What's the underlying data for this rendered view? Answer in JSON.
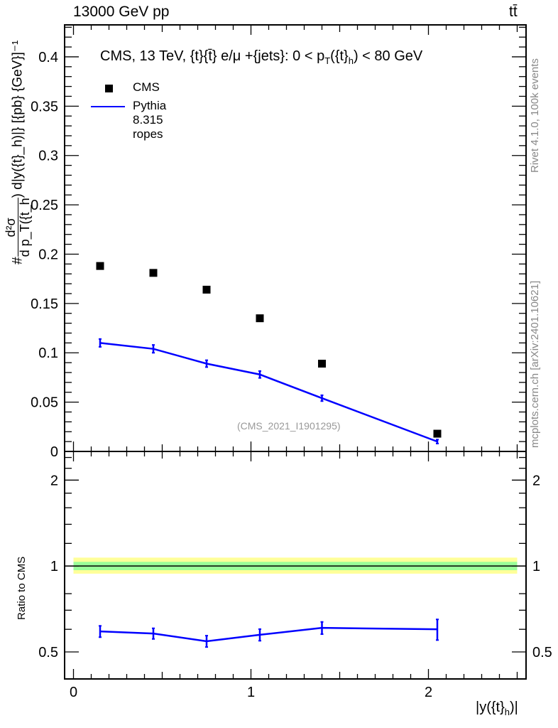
{
  "header": {
    "left": "13000 GeV pp",
    "right": "tt̄"
  },
  "side_labels": {
    "rivet": "Rivet 4.1.0,  100k events",
    "mcplots": "mcplots.cern.ch [arXiv:2401.10621]"
  },
  "colors": {
    "mc": "#0000ff",
    "data": "#000000",
    "band_outer": "#ffff99",
    "band_inner": "#99ff99"
  },
  "chart_data": [
    {
      "type": "scatter",
      "title": "CMS, 13 TeV, {t}{t̄} e/μ +{jets}: 0 <  p_T({t}_h) < 80 GeV",
      "title_parts": {
        "main": "CMS, 13 TeV, {t}{t̄} e/μ +{jets}: 0 <  p",
        "sub1": "T",
        "mid": "({t}",
        "sub2": "h",
        "end": ") < 80 GeV"
      },
      "ylabel": "#frac{d^2σ}{d p_T({t}_h) d|y({t}_h)|} [{pb} {GeV}^-1]",
      "ylabel_parts": {
        "hash": "#",
        "num": "d²σ",
        "den": "d p_T({t_h",
        "rest": ") d|y({t}_h)|} [{pb} {GeV}]⁻¹"
      },
      "watermark": "(CMS_2021_I1901295)",
      "xlim": [
        -0.05,
        2.55
      ],
      "ylim": [
        0,
        0.4324
      ],
      "yticks": [
        0,
        0.05,
        0.1,
        0.15,
        0.2,
        0.25,
        0.3,
        0.35,
        0.4
      ],
      "ytick_labels": [
        "0",
        "0.05",
        "0.1",
        "0.15",
        "0.2",
        "0.25",
        "0.3",
        "0.35",
        "0.4"
      ],
      "legend": {
        "position": "top-left",
        "entries": [
          "CMS",
          "Pythia 8.315 ropes"
        ]
      },
      "series": [
        {
          "name": "CMS",
          "style": "marker",
          "x": [
            0.15,
            0.45,
            0.75,
            1.05,
            1.4,
            2.05
          ],
          "y": [
            0.188,
            0.181,
            0.164,
            0.135,
            0.089,
            0.018
          ]
        },
        {
          "name": "Pythia 8.315 ropes",
          "style": "line",
          "x": [
            0.15,
            0.45,
            0.75,
            1.05,
            1.4,
            2.05
          ],
          "y": [
            0.11,
            0.104,
            0.089,
            0.078,
            0.054,
            0.01
          ],
          "err": [
            0.004,
            0.004,
            0.0035,
            0.0035,
            0.003,
            0.002
          ]
        }
      ]
    },
    {
      "type": "line",
      "ylabel": "Ratio to CMS",
      "xlabel": "|y({t}_h)|",
      "xlabel_parts": {
        "main": "|y({t}",
        "sub": "h",
        "end": ")|"
      },
      "yscale": "log",
      "ylim": [
        0.402,
        2.52
      ],
      "xlim": [
        -0.05,
        2.55
      ],
      "yticks": [
        0.5,
        1,
        2
      ],
      "ytick_labels": [
        "0.5",
        "1",
        "2"
      ],
      "xticks": [
        0,
        1,
        2
      ],
      "xtick_labels": [
        "0",
        "1",
        "2"
      ],
      "band": {
        "outer": [
          0.94,
          1.07
        ],
        "inner": [
          0.967,
          1.034
        ]
      },
      "series": [
        {
          "name": "Pythia 8.315 ropes",
          "x": [
            0.15,
            0.45,
            0.75,
            1.05,
            1.4,
            2.05
          ],
          "y": [
            0.59,
            0.58,
            0.545,
            0.574,
            0.607,
            0.6
          ],
          "err": [
            0.027,
            0.025,
            0.025,
            0.027,
            0.03,
            0.05
          ]
        }
      ]
    }
  ]
}
